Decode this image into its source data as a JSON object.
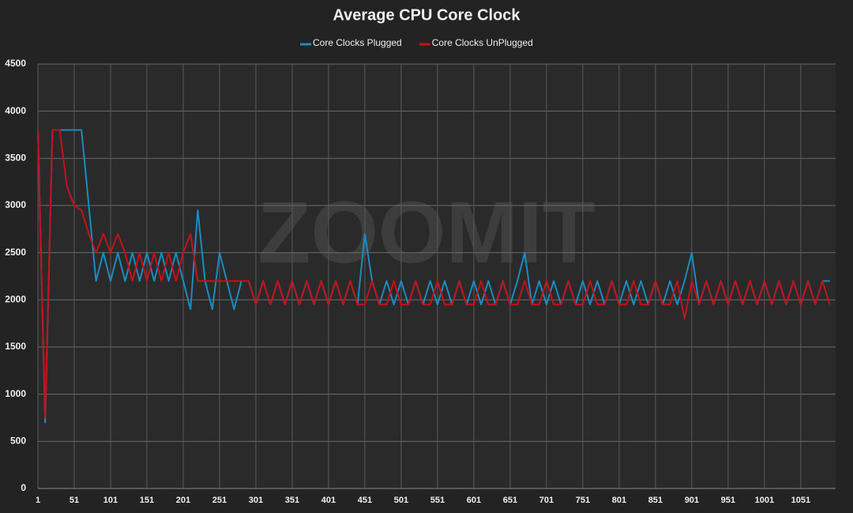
{
  "chart_data": {
    "type": "line",
    "title": "Average CPU Core Clock",
    "watermark": "ZOOMIT",
    "x": [
      1,
      11,
      21,
      31,
      41,
      51,
      61,
      71,
      81,
      91,
      101,
      111,
      121,
      131,
      141,
      151,
      161,
      171,
      181,
      191,
      201,
      211,
      221,
      231,
      241,
      251,
      261,
      271,
      281,
      291,
      301,
      311,
      321,
      331,
      341,
      351,
      361,
      371,
      381,
      391,
      401,
      411,
      421,
      431,
      441,
      451,
      461,
      471,
      481,
      491,
      501,
      511,
      521,
      531,
      541,
      551,
      561,
      571,
      581,
      591,
      601,
      611,
      621,
      631,
      641,
      651,
      661,
      671,
      681,
      691,
      701,
      711,
      721,
      731,
      741,
      751,
      761,
      771,
      781,
      791,
      801,
      811,
      821,
      831,
      841,
      851,
      861,
      871,
      881,
      891,
      901,
      911,
      921,
      931,
      941,
      951,
      961,
      971,
      981,
      991,
      1001,
      1011,
      1021,
      1031,
      1041,
      1051,
      1061,
      1071,
      1081,
      1091
    ],
    "series": [
      {
        "name": "Core Clocks Plugged",
        "color": "#1a8cc0",
        "values": [
          3800,
          700,
          3800,
          3800,
          3800,
          3800,
          3800,
          3000,
          2200,
          2500,
          2200,
          2500,
          2200,
          2500,
          2200,
          2500,
          2200,
          2500,
          2200,
          2500,
          2200,
          1900,
          2950,
          2200,
          1900,
          2500,
          2200,
          1900,
          2200,
          2200,
          1950,
          2200,
          1950,
          2200,
          1950,
          2200,
          1950,
          2200,
          1950,
          2200,
          1950,
          2200,
          1950,
          2200,
          1950,
          2700,
          2200,
          1950,
          2200,
          1950,
          2200,
          1950,
          2200,
          1950,
          2200,
          1950,
          2200,
          1950,
          2200,
          1950,
          2200,
          1950,
          2200,
          1950,
          2200,
          1950,
          2200,
          2500,
          1950,
          2200,
          1950,
          2200,
          1950,
          2200,
          1950,
          2200,
          1950,
          2200,
          1950,
          2200,
          1950,
          2200,
          1950,
          2200,
          1950,
          2200,
          1950,
          2200,
          1950,
          2200,
          2500,
          1950,
          2200,
          1950,
          2200,
          1950,
          2200,
          1950,
          2200,
          1950,
          2200,
          1950,
          2200,
          1950,
          2200,
          1950,
          2200,
          1950,
          2200,
          2200
        ]
      },
      {
        "name": "Core Clocks UnPlugged",
        "color": "#c8101a",
        "values": [
          3800,
          750,
          3800,
          3800,
          3200,
          3000,
          2950,
          2700,
          2500,
          2700,
          2500,
          2700,
          2500,
          2200,
          2500,
          2200,
          2500,
          2200,
          2500,
          2200,
          2500,
          2700,
          2200,
          2200,
          2200,
          2200,
          2200,
          2200,
          2200,
          2200,
          1950,
          2200,
          1950,
          2200,
          1950,
          2200,
          1950,
          2200,
          1950,
          2200,
          1950,
          2200,
          1950,
          2200,
          1950,
          1950,
          2200,
          1950,
          1950,
          2200,
          1950,
          1950,
          2200,
          1950,
          1950,
          2200,
          1950,
          1950,
          2200,
          1950,
          1950,
          2200,
          1950,
          1950,
          2200,
          1950,
          1950,
          2200,
          1950,
          1950,
          2200,
          1950,
          1950,
          2200,
          1950,
          1950,
          2200,
          1950,
          1950,
          2200,
          1950,
          1950,
          2200,
          1950,
          1950,
          2200,
          1950,
          1950,
          2200,
          1800,
          2200,
          1950,
          2200,
          1950,
          2200,
          1950,
          2200,
          1950,
          2200,
          1950,
          2200,
          1950,
          2200,
          1950,
          2200,
          1950,
          2200,
          1950,
          2200,
          1950
        ]
      }
    ],
    "xlim": [
      1,
      1099
    ],
    "xticks": [
      1,
      51,
      101,
      151,
      201,
      251,
      301,
      351,
      401,
      451,
      501,
      551,
      601,
      651,
      701,
      751,
      801,
      851,
      901,
      951,
      1001,
      1051
    ],
    "ylim": [
      0,
      4500
    ],
    "yticks": [
      0,
      500,
      1000,
      1500,
      2000,
      2500,
      3000,
      3500,
      4000,
      4500
    ],
    "grid": true
  }
}
